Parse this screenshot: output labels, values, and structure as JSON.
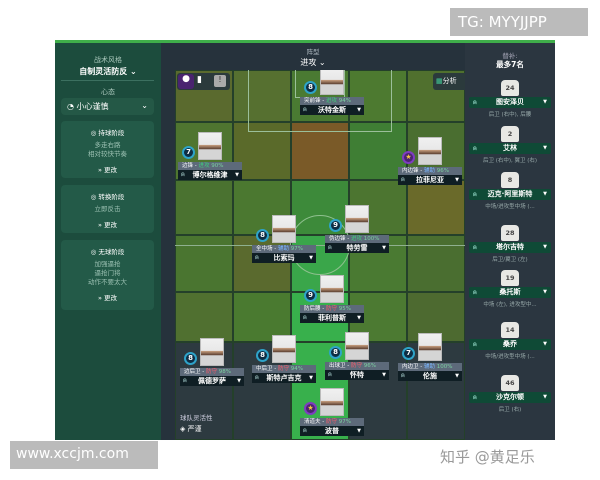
{
  "watermarks": {
    "tg": "TG: MYYJJPP",
    "site": "www.xccjm.com",
    "zhihu": "知乎 @黄足乐"
  },
  "left": {
    "style_label": "战术风格",
    "style_value": "自制灵活防反",
    "mentality_label": "心态",
    "mentality_value": "小心谨慎",
    "phases": [
      {
        "title": "持球阶段",
        "lines": [
          "多走右路",
          "相对较快节奏"
        ],
        "change": "更改"
      },
      {
        "title": "转换阶段",
        "lines": [
          "立即反击"
        ],
        "change": "更改"
      },
      {
        "title": "无球阶段",
        "lines": [
          "加强逼抢",
          "逼抢门将",
          "动作不要太大"
        ],
        "change": "更改"
      }
    ]
  },
  "formation": {
    "label": "阵型",
    "value": "进攻",
    "analysis": "分析"
  },
  "flexibility": {
    "label": "球队灵活性",
    "value": "严谨"
  },
  "players": [
    {
      "num": "8",
      "role": "突前锋",
      "duty": "进攻",
      "pct": "94%",
      "name": "沃特金斯",
      "duty_type": "att"
    },
    {
      "num": "7",
      "role": "边锋",
      "duty": "进攻",
      "pct": "90%",
      "name": "博尔格维津",
      "duty_type": "att"
    },
    {
      "num": "★",
      "role": "内边锋",
      "duty": "辅助",
      "pct": "96%",
      "name": "拉菲尼亚",
      "duty_type": "sup"
    },
    {
      "num": "8",
      "role": "全中场",
      "duty": "辅助",
      "pct": "97%",
      "name": "比索玛",
      "duty_type": "sup"
    },
    {
      "num": "9",
      "role": "伪边锋",
      "duty": "进攻",
      "pct": "100%",
      "name": "特劳雷",
      "duty_type": "att"
    },
    {
      "num": "9",
      "role": "防后腰",
      "duty": "防守",
      "pct": "95%",
      "name": "菲利普斯",
      "duty_type": "def"
    },
    {
      "num": "8",
      "role": "边后卫",
      "duty": "防守",
      "pct": "98%",
      "name": "佩德罗萨",
      "duty_type": "def"
    },
    {
      "num": "8",
      "role": "中后卫",
      "duty": "防守",
      "pct": "94%",
      "name": "斯特卢吉克",
      "duty_type": "def"
    },
    {
      "num": "8",
      "role": "出球卫",
      "duty": "防守",
      "pct": "96%",
      "name": "怀特",
      "duty_type": "def"
    },
    {
      "num": "7",
      "role": "内边卫",
      "duty": "辅助",
      "pct": "100%",
      "name": "伦施",
      "duty_type": "sup"
    },
    {
      "num": "★",
      "role": "清道夫",
      "duty": "防守",
      "pct": "97%",
      "name": "波普",
      "duty_type": "def"
    }
  ],
  "subs": {
    "label": "替补:",
    "limit": "最多7名",
    "items": [
      {
        "num": "24",
        "name": "图安泽贝",
        "pos": "后卫 (右中), 后腰"
      },
      {
        "num": "2",
        "name": "艾林",
        "pos": "后卫 (右中), 翼卫 (右)"
      },
      {
        "num": "8",
        "name": "迈克·阿里斯特",
        "pos": "中场/进攻型中场 (..."
      },
      {
        "num": "28",
        "name": "塔尔吉特",
        "pos": "后卫/翼卫 (左)"
      },
      {
        "num": "19",
        "name": "桑托斯",
        "pos": "中场 (左), 进攻型中..."
      },
      {
        "num": "14",
        "name": "桑乔",
        "pos": "中场/进攻型中场 (..."
      },
      {
        "num": "46",
        "name": "沙克尔顿",
        "pos": "后卫 (右)"
      }
    ]
  }
}
